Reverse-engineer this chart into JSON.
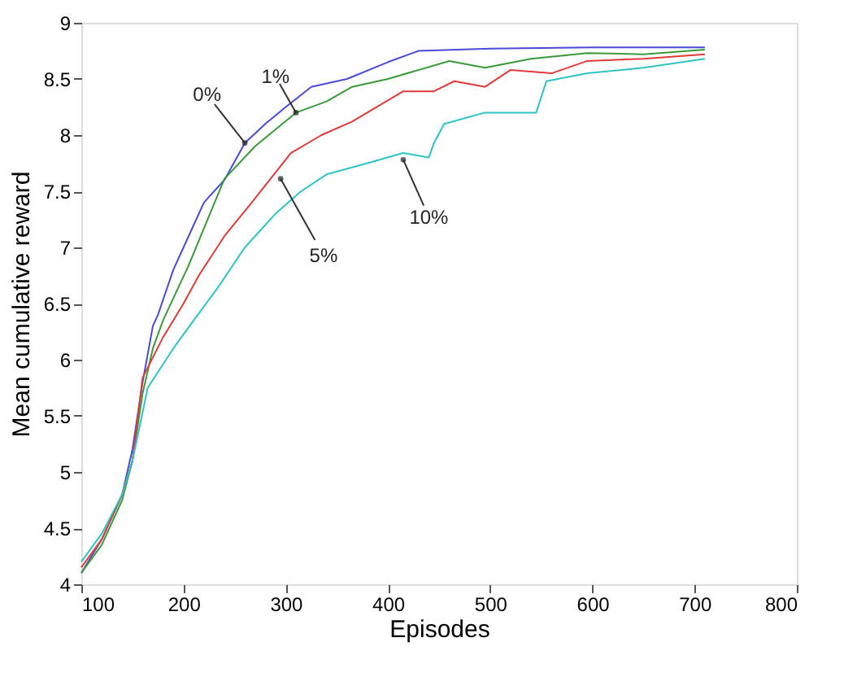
{
  "chart_data": {
    "type": "line",
    "xlabel": "Episodes",
    "ylabel": "Mean cumulative reward",
    "xlim": [
      100,
      800
    ],
    "xticks": [
      100,
      200,
      300,
      400,
      500,
      600,
      700,
      800
    ],
    "ylim": [
      4,
      9
    ],
    "yticks": [
      4,
      4.5,
      5,
      5.5,
      6,
      6.5,
      7,
      7.5,
      8,
      8.5,
      9
    ],
    "grid": false,
    "legend": false,
    "marker": "none",
    "line_style": "solid",
    "series": [
      {
        "color": "#4a4ad8",
        "x": [
          100,
          120,
          140,
          150,
          160,
          170,
          175,
          190,
          200,
          220,
          240,
          260,
          280,
          300,
          325,
          360,
          400,
          430,
          500,
          600,
          710
        ],
        "values": [
          4.1,
          4.4,
          4.8,
          5.2,
          5.8,
          6.3,
          6.4,
          6.8,
          7.0,
          7.4,
          7.6,
          7.93,
          8.1,
          8.25,
          8.43,
          8.5,
          8.65,
          8.75,
          8.77,
          8.78,
          8.78
        ]
      },
      {
        "color": "#3a9a3a",
        "x": [
          100,
          120,
          140,
          150,
          160,
          170,
          180,
          205,
          240,
          270,
          310,
          340,
          365,
          400,
          460,
          495,
          540,
          595,
          650,
          710
        ],
        "values": [
          4.1,
          4.35,
          4.75,
          5.1,
          5.7,
          6.1,
          6.35,
          6.84,
          7.61,
          7.9,
          8.2,
          8.3,
          8.43,
          8.5,
          8.66,
          8.6,
          8.68,
          8.73,
          8.72,
          8.76
        ]
      },
      {
        "color": "#e03a3a",
        "x": [
          100,
          120,
          140,
          150,
          160,
          180,
          200,
          215,
          240,
          265,
          305,
          335,
          365,
          415,
          445,
          465,
          495,
          520,
          560,
          595,
          650,
          710
        ],
        "values": [
          4.15,
          4.4,
          4.8,
          5.1,
          5.84,
          6.2,
          6.5,
          6.75,
          7.1,
          7.38,
          7.84,
          8.0,
          8.12,
          8.39,
          8.39,
          8.48,
          8.43,
          8.58,
          8.55,
          8.66,
          8.68,
          8.72
        ]
      },
      {
        "color": "#2ec4c4",
        "x": [
          100,
          120,
          140,
          150,
          165,
          190,
          210,
          235,
          260,
          290,
          315,
          340,
          380,
          415,
          440,
          445,
          455,
          495,
          545,
          555,
          595,
          650,
          710
        ],
        "values": [
          4.2,
          4.45,
          4.8,
          5.1,
          5.75,
          6.1,
          6.35,
          6.66,
          7.0,
          7.3,
          7.5,
          7.65,
          7.75,
          7.84,
          7.8,
          7.93,
          8.1,
          8.2,
          8.2,
          8.48,
          8.55,
          8.6,
          8.68
        ]
      }
    ],
    "annotations": [
      {
        "text": "0%",
        "x": 260,
        "y": 7.93
      },
      {
        "text": "1%",
        "x": 310,
        "y": 8.2
      },
      {
        "text": "5%",
        "x": 295,
        "y": 7.61
      },
      {
        "text": "10%",
        "x": 415,
        "y": 7.78
      }
    ]
  }
}
